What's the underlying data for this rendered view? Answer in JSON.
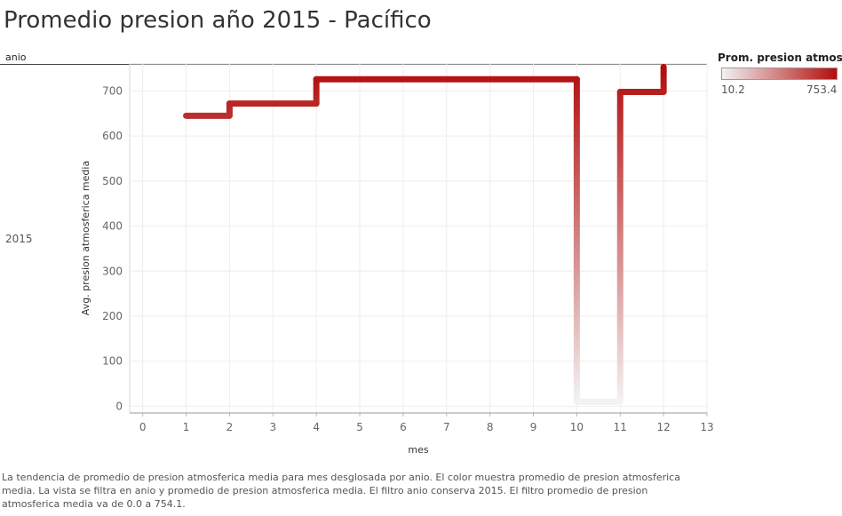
{
  "page": {
    "title": "Promedio presion año 2015 - Pacífico",
    "row_header": "anio",
    "row_value": "2015",
    "caption": "La tendencia de promedio de presion atmosferica media para mes desglosada por anio.  El color muestra promedio de presion atmosferica media. La vista se filtra en anio y promedio de presion atmosferica media. El filtro anio conserva 2015. El filtro promedio de presion atmosferica media va de 0.0 a 754.1."
  },
  "legend": {
    "title": "Prom. presion atmosfer..",
    "min_label": "10.2",
    "max_label": "753.4",
    "min": 10.2,
    "max": 753.4,
    "color_low": "#f2f2f2",
    "color_high": "#b10d0d"
  },
  "chart_data": {
    "type": "line",
    "line_shape": "step",
    "xlabel": "mes",
    "ylabel": "Avg. presion atmosferica media",
    "xlim": [
      -0.3,
      13
    ],
    "ylim": [
      -15,
      760
    ],
    "x_ticks": [
      0,
      1,
      2,
      3,
      4,
      5,
      6,
      7,
      8,
      9,
      10,
      11,
      12,
      13
    ],
    "y_ticks": [
      0,
      100,
      200,
      300,
      400,
      500,
      600,
      700
    ],
    "grid": true,
    "legend_position": "top-right",
    "series": [
      {
        "x": [
          1,
          2,
          4,
          10,
          11,
          12
        ],
        "values": [
          645,
          672,
          726,
          10.2,
          698,
          753.4
        ]
      }
    ]
  }
}
